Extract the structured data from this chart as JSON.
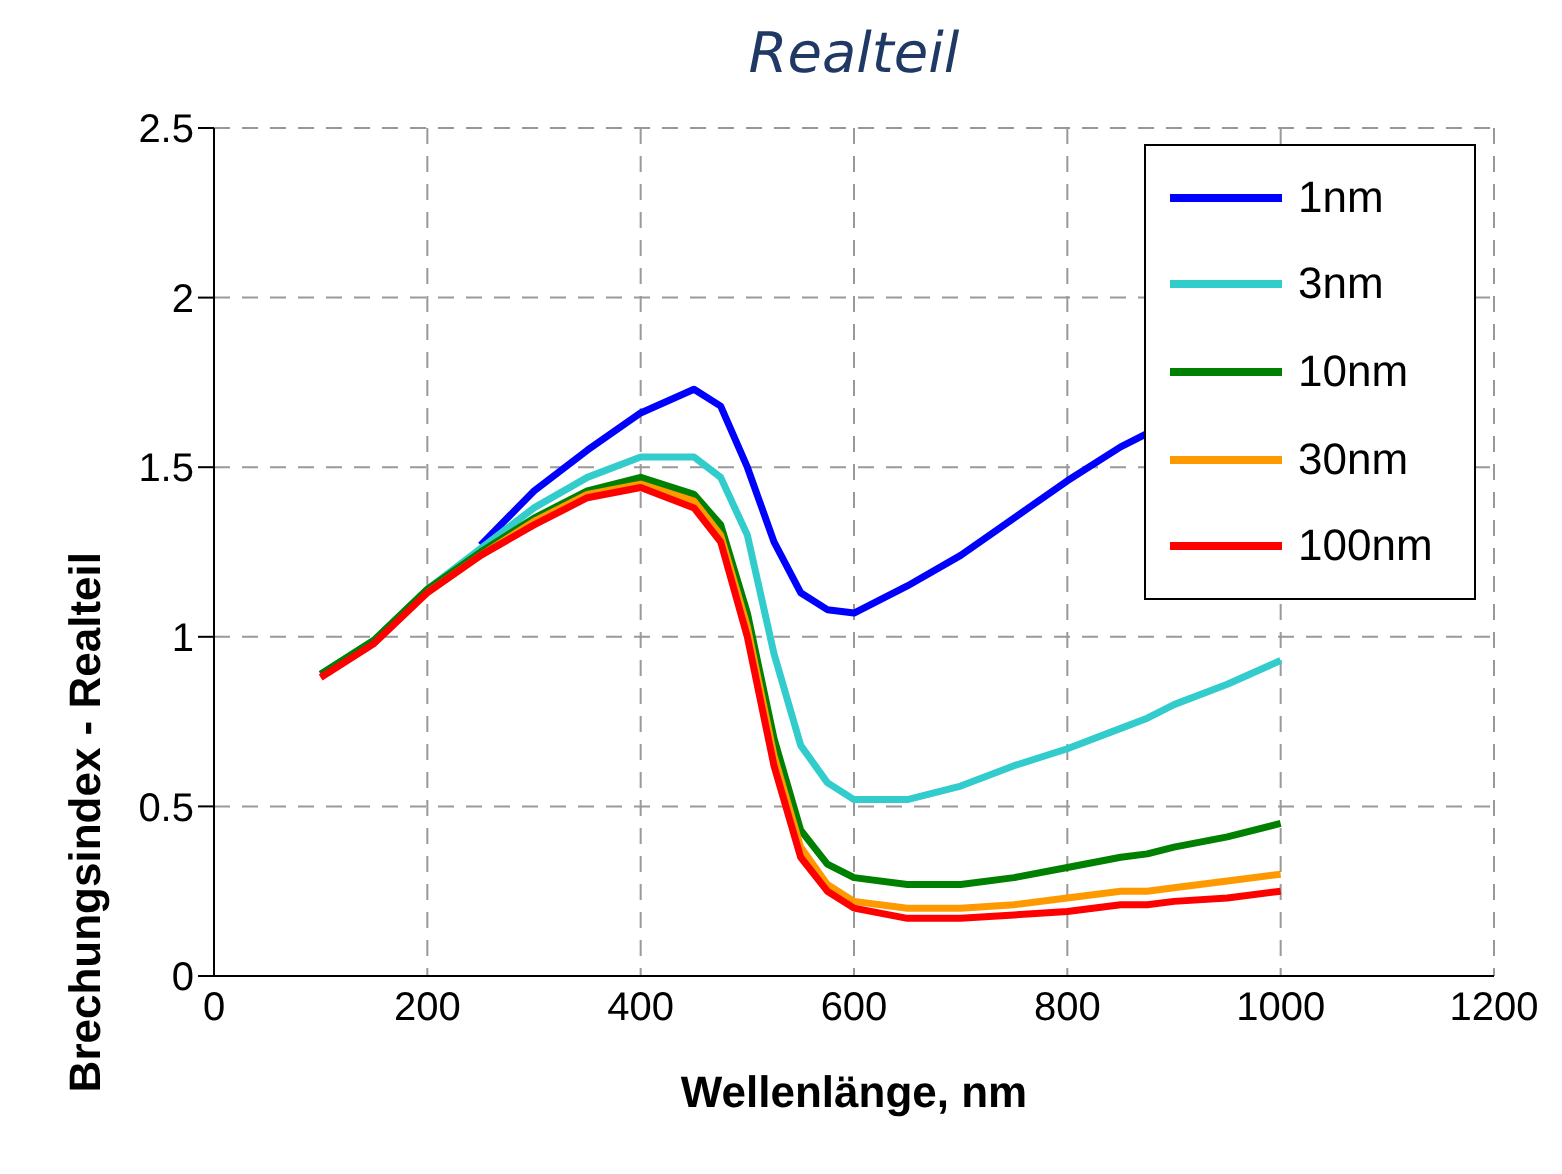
{
  "chart_data": {
    "type": "line",
    "title": "Realteil",
    "xlabel": "Wellenlänge, nm",
    "ylabel": "Brechungsindex - Realteil",
    "x": [
      100,
      150,
      200,
      250,
      300,
      350,
      400,
      450,
      475,
      500,
      525,
      550,
      575,
      600,
      650,
      700,
      750,
      800,
      850,
      875,
      900,
      950,
      1000
    ],
    "series": [
      {
        "name": "1nm",
        "color": "#0000ff",
        "values": [
          null,
          null,
          null,
          1.27,
          1.43,
          1.55,
          1.66,
          1.73,
          1.68,
          1.5,
          1.28,
          1.13,
          1.08,
          1.07,
          1.15,
          1.24,
          1.35,
          1.46,
          1.56,
          1.6,
          null,
          null,
          null
        ]
      },
      {
        "name": "3nm",
        "color": "#33cccc",
        "values": [
          0.89,
          0.99,
          1.14,
          1.26,
          1.38,
          1.47,
          1.53,
          1.53,
          1.47,
          1.3,
          0.95,
          0.68,
          0.57,
          0.52,
          0.52,
          0.56,
          0.62,
          0.67,
          0.73,
          0.76,
          0.8,
          0.86,
          0.93
        ]
      },
      {
        "name": "10nm",
        "color": "#008000",
        "values": [
          0.89,
          0.99,
          1.14,
          1.25,
          1.35,
          1.43,
          1.47,
          1.42,
          1.33,
          1.07,
          0.7,
          0.43,
          0.33,
          0.29,
          0.27,
          0.27,
          0.29,
          0.32,
          0.35,
          0.36,
          0.38,
          0.41,
          0.45
        ]
      },
      {
        "name": "30nm",
        "color": "#ff9900",
        "values": [
          null,
          null,
          1.13,
          1.24,
          1.34,
          1.42,
          1.45,
          1.4,
          1.3,
          1.03,
          0.65,
          0.38,
          0.27,
          0.22,
          0.2,
          0.2,
          0.21,
          0.23,
          0.25,
          0.25,
          0.26,
          0.28,
          0.3
        ]
      },
      {
        "name": "100nm",
        "color": "#ff0000",
        "values": [
          0.88,
          0.98,
          1.13,
          1.24,
          1.33,
          1.41,
          1.44,
          1.38,
          1.28,
          1.0,
          0.62,
          0.35,
          0.25,
          0.2,
          0.17,
          0.17,
          0.18,
          0.19,
          0.21,
          0.21,
          0.22,
          0.23,
          0.25
        ]
      }
    ],
    "xlim": [
      0,
      1200
    ],
    "xticks": [
      0,
      200,
      400,
      600,
      800,
      1000,
      1200
    ],
    "ylim": [
      0,
      2.5
    ],
    "yticks": [
      0,
      0.5,
      1,
      1.5,
      2,
      2.5
    ],
    "grid": true,
    "legend": "top right",
    "marker": "none",
    "line_style": "solid"
  }
}
